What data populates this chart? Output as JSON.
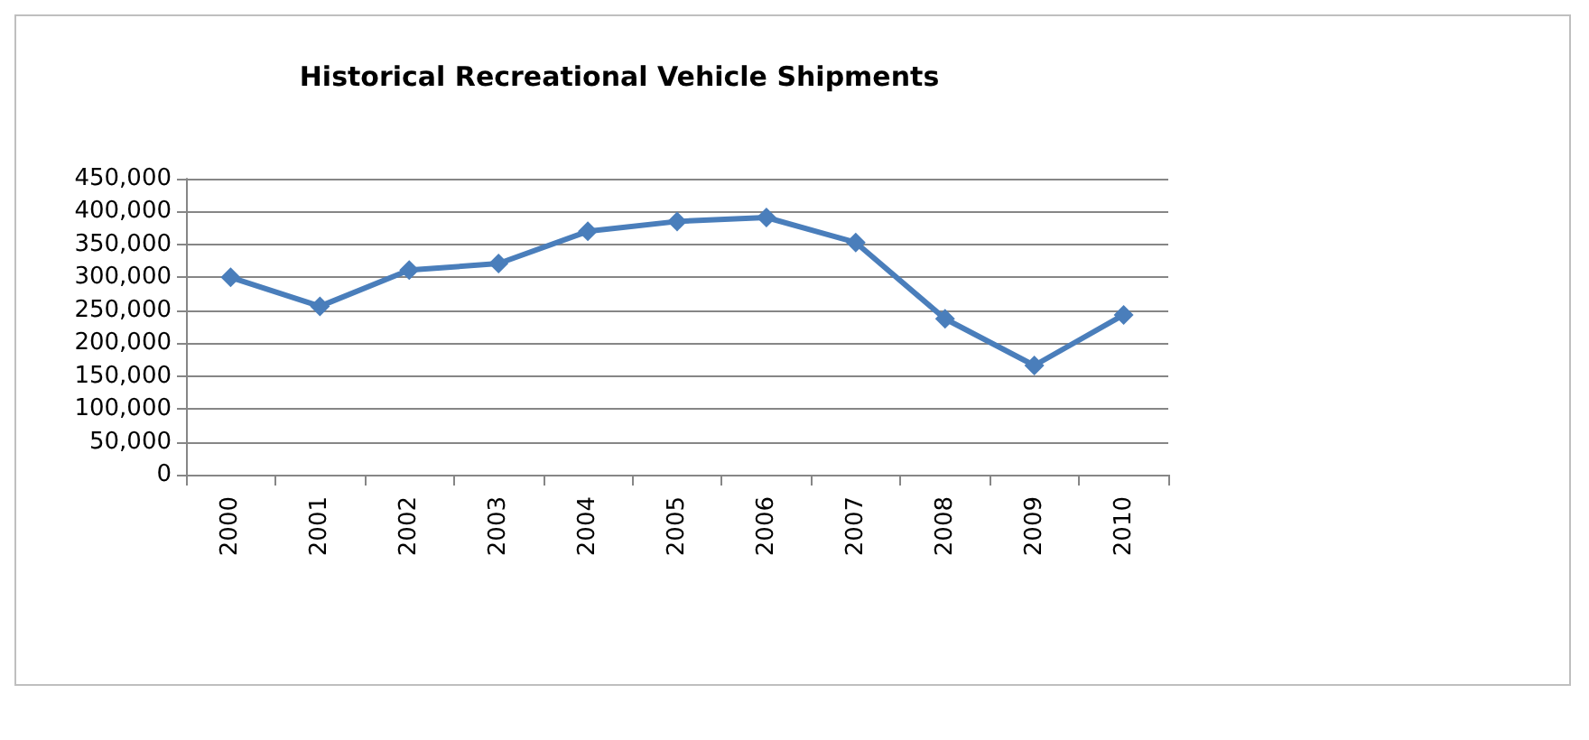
{
  "chart_data": {
    "type": "line",
    "title": "Historical Recreational Vehicle Shipments",
    "categories": [
      "2000",
      "2001",
      "2002",
      "2003",
      "2004",
      "2005",
      "2006",
      "2007",
      "2008",
      "2009",
      "2010"
    ],
    "series": [
      {
        "color": "#4a7ebb",
        "values": [
          300000,
          256000,
          311000,
          321000,
          370000,
          385000,
          391000,
          353000,
          237000,
          166000,
          243000
        ]
      }
    ],
    "ylim": [
      0,
      450000
    ],
    "yticks": [
      {
        "value": 0,
        "label": "0"
      },
      {
        "value": 50000,
        "label": "50,000"
      },
      {
        "value": 100000,
        "label": "100,000"
      },
      {
        "value": 150000,
        "label": "150,000"
      },
      {
        "value": 200000,
        "label": "200,000"
      },
      {
        "value": 250000,
        "label": "250,000"
      },
      {
        "value": 300000,
        "label": "300,000"
      },
      {
        "value": 350000,
        "label": "350,000"
      },
      {
        "value": 400000,
        "label": "400,000"
      },
      {
        "value": 450000,
        "label": "450,000"
      }
    ],
    "grid": "y",
    "marker": "diamond",
    "line_style": "solid"
  }
}
